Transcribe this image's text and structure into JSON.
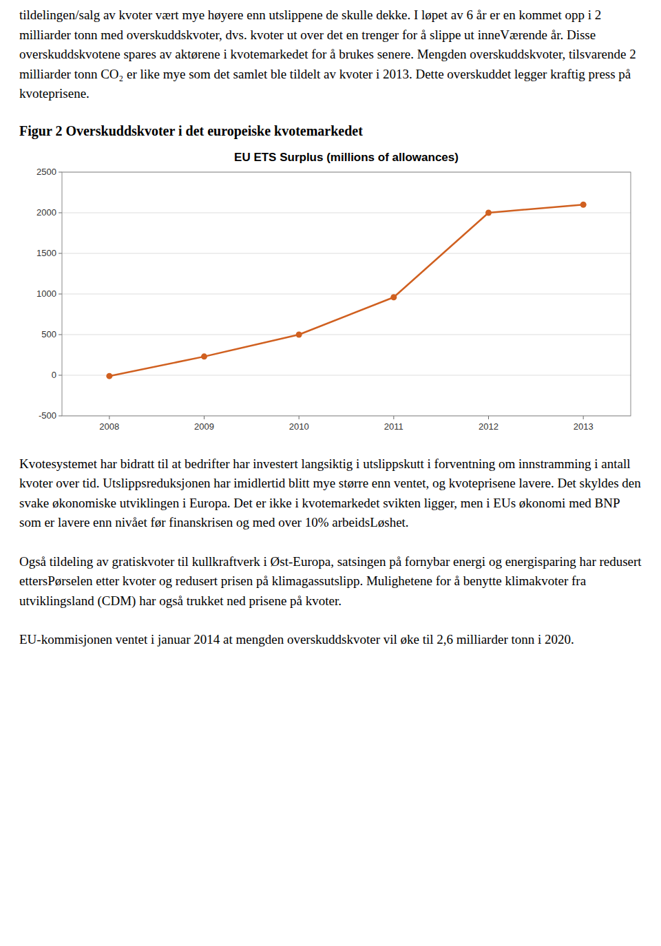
{
  "paragraphs": [
    "tildelingen/salg av kvoter vært mye høyere enn utslippene de skulle dekke. I løpet av 6 år er en kommet opp i 2 milliarder tonn med overskuddskvoter, dvs. kvoter ut over det en trenger for å slippe ut inneVærende år. Disse overskuddskvotene spares av aktørene i kvotemarkedet for å brukes senere. Mengden overskuddskvoter, tilsvarende 2 milliarder tonn CO₂ er like mye som det samlet ble tildelt av kvoter i 2013. Dette overskuddet legger kraftig press på kvoteprisene.",
    "Kvotesystemet har bidratt til at bedrifter har investert langsiktig i utslippskutt i forventning om innstramming i antall kvoter over tid. Utslippsreduksjonen har imidlertid blitt mye større enn ventet, og kvoteprisene lavere. Det skyldes den svake økonomiske utviklingen i Europa. Det er ikke i kvotemarkedet svikten ligger, men i EUs økonomi med BNP som er lavere enn nivået før finanskrisen og med over 10% arbeidsLøshet.",
    "Også tildeling av gratiskvoter til kullkraftverk i Øst-Europa, satsingen på fornybar energi og energisparing har redusert ettersPørselen etter kvoter og redusert prisen på klimagassutslipp. Mulighetene for å benytte klimakvoter fra utviklingsland (CDM) har også trukket ned prisene på kvoter.",
    "EU-kommisjonen ventet i januar 2014 at mengden overskuddskvoter vil øke til 2,6 milliarder tonn i 2020."
  ],
  "figure_label": "Figur 2 Overskuddskvoter i det europeiske kvotemarkedet",
  "chart_data": {
    "type": "line",
    "title": "EU ETS Surplus (millions of allowances)",
    "x": [
      2008,
      2009,
      2010,
      2011,
      2012,
      2013
    ],
    "values": [
      -10,
      230,
      500,
      960,
      2000,
      2100
    ],
    "color": "#d06020",
    "marker": "circle",
    "xlim": [
      2007.5,
      2013.5
    ],
    "xticks": [
      2008,
      2009,
      2010,
      2011,
      2012,
      2013
    ],
    "ylim": [
      -500,
      2500
    ],
    "yticks": [
      -500,
      0,
      500,
      1000,
      1500,
      2000,
      2500
    ],
    "grid": true
  }
}
